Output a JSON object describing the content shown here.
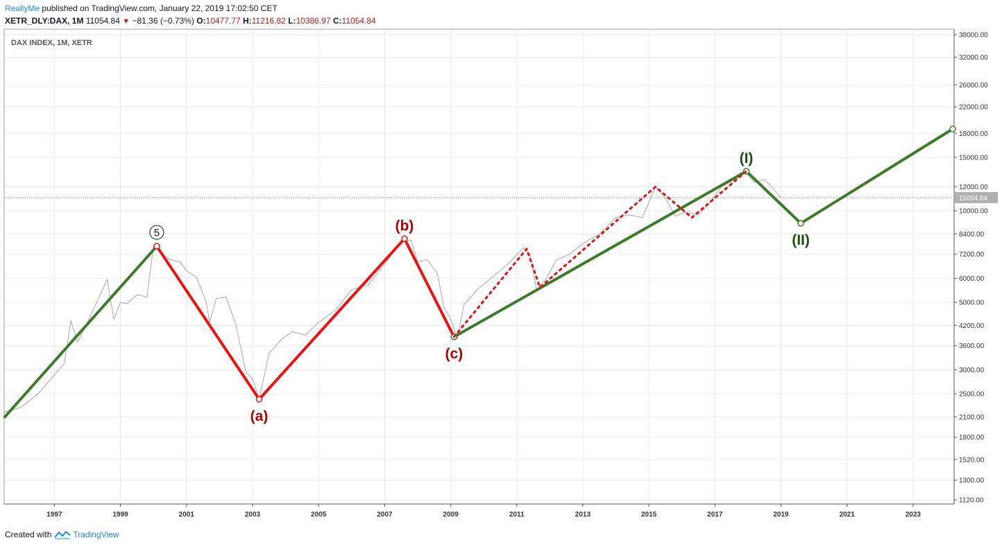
{
  "header": {
    "user": "ReallyMe",
    "published": " published on TradingView.com, January 22, 2019 17:02:50 CET",
    "symbol": "XETR_DLY:DAX, 1M",
    "last": "11054.84",
    "change": "−81.36 (−0.73%)",
    "o_label": "O:",
    "o": "10477.77",
    "h_label": "H:",
    "h": "11216.82",
    "l_label": "L:",
    "l": "10386.97",
    "c_label": "C:",
    "c": "11054.84"
  },
  "footer": {
    "created": "Created with",
    "brand": "TradingView"
  },
  "colors": {
    "impulse": "#3d7a2a",
    "correction": "#ee1111",
    "dotted": "#dd1111",
    "price": "#a8a8a8",
    "grid": "#e6edf3",
    "accent": "#1e88e5",
    "last_price_bg": "#b0b0b0"
  },
  "icons": {
    "trend": "down-triangle-icon",
    "logo": "tradingview-logo-icon"
  },
  "chart_data": {
    "type": "line",
    "title": "DAX INDEX, 1M, XETR",
    "scale": "log",
    "x_unit": "year",
    "ylim": [
      1080,
      40000
    ],
    "xlim": [
      1995.5,
      2024.2
    ],
    "y_ticks": [
      1120,
      1300,
      1520,
      1800,
      2100,
      2500,
      3000,
      3600,
      4200,
      5000,
      6000,
      7200,
      8400,
      10000,
      12000,
      15000,
      18000,
      22000,
      26000,
      32000,
      38000
    ],
    "y_tick_labels": [
      "1120.00",
      "1300.00",
      "1520.00",
      "1800.00",
      "2100.00",
      "2500.00",
      "3000.00",
      "3600.00",
      "4200.00",
      "5000.00",
      "6000.00",
      "7200.00",
      "8400.00",
      "10000.00",
      "12000.00",
      "15000.00",
      "18000.00",
      "22000.00",
      "26000.00",
      "32000.00",
      "38000.00"
    ],
    "x_ticks": [
      1997,
      1999,
      2001,
      2003,
      2005,
      2007,
      2009,
      2011,
      2013,
      2015,
      2017,
      2019,
      2021,
      2023
    ],
    "last_price": 11054.84,
    "last_price_label": "11054.84",
    "series": [
      {
        "style": "price",
        "points": [
          [
            1995.5,
            2180
          ],
          [
            1996.0,
            2260
          ],
          [
            1996.5,
            2500
          ],
          [
            1997.0,
            2880
          ],
          [
            1997.3,
            3150
          ],
          [
            1997.5,
            4350
          ],
          [
            1997.7,
            3700
          ],
          [
            1998.0,
            4300
          ],
          [
            1998.3,
            5050
          ],
          [
            1998.6,
            5950
          ],
          [
            1998.8,
            4400
          ],
          [
            1999.0,
            5000
          ],
          [
            1999.2,
            4950
          ],
          [
            1999.5,
            5300
          ],
          [
            1999.8,
            5200
          ],
          [
            2000.0,
            7650
          ],
          [
            2000.2,
            7300
          ],
          [
            2000.5,
            6900
          ],
          [
            2000.8,
            6800
          ],
          [
            2001.0,
            6350
          ],
          [
            2001.3,
            6050
          ],
          [
            2001.6,
            5000
          ],
          [
            2001.7,
            4300
          ],
          [
            2001.9,
            5150
          ],
          [
            2002.2,
            5200
          ],
          [
            2002.5,
            4200
          ],
          [
            2002.8,
            2950
          ],
          [
            2003.0,
            2800
          ],
          [
            2003.2,
            2400
          ],
          [
            2003.5,
            3400
          ],
          [
            2003.9,
            3800
          ],
          [
            2004.2,
            4000
          ],
          [
            2004.6,
            3900
          ],
          [
            2005.0,
            4300
          ],
          [
            2005.5,
            4700
          ],
          [
            2006.0,
            5500
          ],
          [
            2006.5,
            5700
          ],
          [
            2007.0,
            6700
          ],
          [
            2007.5,
            7900
          ],
          [
            2007.8,
            8000
          ],
          [
            2008.0,
            6800
          ],
          [
            2008.3,
            6900
          ],
          [
            2008.6,
            6200
          ],
          [
            2008.8,
            4800
          ],
          [
            2009.0,
            4400
          ],
          [
            2009.2,
            3800
          ],
          [
            2009.4,
            4900
          ],
          [
            2009.8,
            5500
          ],
          [
            2010.3,
            6100
          ],
          [
            2010.8,
            6800
          ],
          [
            2011.2,
            7550
          ],
          [
            2011.4,
            7200
          ],
          [
            2011.6,
            5500
          ],
          [
            2011.9,
            6000
          ],
          [
            2012.2,
            6900
          ],
          [
            2012.6,
            7200
          ],
          [
            2013.0,
            7800
          ],
          [
            2013.5,
            8400
          ],
          [
            2014.0,
            9500
          ],
          [
            2014.4,
            9700
          ],
          [
            2014.8,
            9500
          ],
          [
            2015.2,
            12000
          ],
          [
            2015.5,
            11000
          ],
          [
            2015.8,
            9600
          ],
          [
            2016.1,
            9900
          ],
          [
            2016.5,
            9700
          ],
          [
            2016.8,
            10500
          ],
          [
            2017.2,
            12000
          ],
          [
            2017.6,
            12700
          ],
          [
            2017.95,
            13400
          ],
          [
            2018.2,
            12400
          ],
          [
            2018.5,
            12700
          ],
          [
            2018.8,
            11700
          ],
          [
            2019.0,
            11054
          ]
        ]
      },
      {
        "style": "impulse",
        "label": "5",
        "points": [
          [
            1995.5,
            2100
          ],
          [
            2000.1,
            7650
          ]
        ]
      },
      {
        "style": "correction",
        "points": [
          [
            2000.1,
            7650
          ],
          [
            2003.2,
            2400
          ],
          [
            2007.6,
            8100
          ],
          [
            2009.1,
            3850
          ]
        ]
      },
      {
        "style": "impulse",
        "points": [
          [
            2009.1,
            3850
          ],
          [
            2017.95,
            13500
          ],
          [
            2019.6,
            9100
          ],
          [
            2024.2,
            18600
          ]
        ]
      },
      {
        "style": "dotted",
        "points": [
          [
            2009.1,
            3850
          ],
          [
            2011.3,
            7500
          ],
          [
            2011.7,
            5600
          ],
          [
            2015.2,
            12000
          ],
          [
            2016.3,
            9500
          ],
          [
            2017.95,
            13500
          ]
        ]
      }
    ],
    "annotations": [
      {
        "text": "(a)",
        "x": 2003.2,
        "y": 2400,
        "color": "red",
        "pos": "below"
      },
      {
        "text": "(b)",
        "x": 2007.6,
        "y": 8100,
        "color": "red",
        "pos": "above"
      },
      {
        "text": "(c)",
        "x": 2009.1,
        "y": 3850,
        "color": "red",
        "pos": "below"
      },
      {
        "text": "(I)",
        "x": 2017.95,
        "y": 13500,
        "color": "green",
        "pos": "above"
      },
      {
        "text": "(II)",
        "x": 2019.6,
        "y": 9100,
        "color": "green",
        "pos": "below"
      }
    ]
  }
}
